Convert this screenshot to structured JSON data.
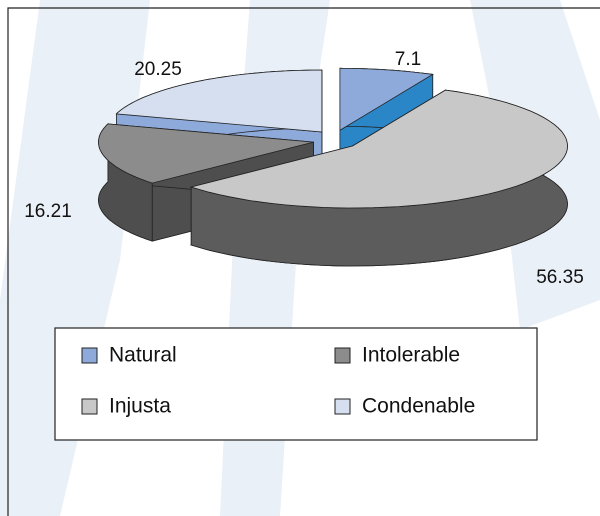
{
  "chart_data": {
    "type": "pie",
    "categories": [
      "Natural",
      "Injusta",
      "Intolerable",
      "Condenable"
    ],
    "values": [
      7.1,
      56.35,
      16.21,
      20.25
    ],
    "colors": [
      "#8eaadb",
      "#c8c8c8",
      "#8c8c8c",
      "#d5dff0"
    ],
    "side_colors": [
      "#2a86c6",
      "#5c5c5c",
      "#4e4e4e",
      "#8eaadb"
    ],
    "legend": "bottom"
  }
}
